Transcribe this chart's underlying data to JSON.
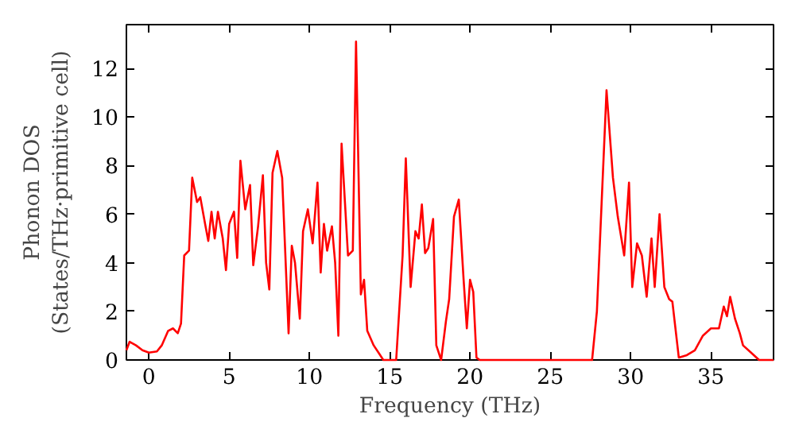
{
  "chart_data": {
    "type": "line",
    "xlabel": "Frequency (THz)",
    "ylabel": "Phonon DOS\n(States/THz·primitive cell)",
    "xlim": [
      -1.4,
      38.9
    ],
    "ylim": [
      0,
      13.8
    ],
    "xticks": [
      0,
      5,
      10,
      15,
      20,
      25,
      30,
      35
    ],
    "yticks": [
      0,
      2,
      4,
      6,
      8,
      10,
      12
    ],
    "grid": false,
    "marker": "none",
    "line_style": "solid",
    "series": [
      {
        "color": "#ff0000",
        "x": [
          -1.4,
          -1.2,
          -0.8,
          -0.4,
          0,
          0.5,
          0.8,
          1.2,
          1.5,
          1.8,
          2.0,
          2.2,
          2.5,
          2.7,
          3.0,
          3.2,
          3.5,
          3.7,
          3.9,
          4.1,
          4.3,
          4.6,
          4.8,
          5.0,
          5.3,
          5.5,
          5.7,
          6.0,
          6.3,
          6.5,
          6.8,
          7.1,
          7.3,
          7.5,
          7.7,
          8.0,
          8.3,
          8.7,
          8.9,
          9.1,
          9.4,
          9.6,
          9.9,
          10.2,
          10.5,
          10.7,
          10.9,
          11.1,
          11.4,
          11.6,
          11.8,
          12.0,
          12.4,
          12.7,
          12.9,
          13.2,
          13.4,
          13.6,
          14.0,
          14.3,
          14.6,
          15.4,
          15.8,
          16.0,
          16.3,
          16.6,
          16.8,
          17.0,
          17.2,
          17.4,
          17.7,
          17.9,
          18.2,
          18.5,
          18.7,
          19.0,
          19.3,
          19.6,
          19.8,
          20.0,
          20.2,
          20.4,
          20.6,
          27.6,
          27.9,
          28.5,
          28.9,
          29.2,
          29.6,
          29.9,
          30.1,
          30.4,
          30.7,
          31.0,
          31.3,
          31.5,
          31.8,
          32.1,
          32.4,
          32.6,
          33.0,
          33.5,
          34.0,
          34.5,
          35.0,
          35.5,
          35.8,
          36.0,
          36.2,
          36.5,
          36.8,
          37.0,
          37.5,
          38.0,
          38.9
        ],
        "values": [
          0.4,
          0.75,
          0.6,
          0.4,
          0.3,
          0.35,
          0.6,
          1.2,
          1.3,
          1.1,
          1.5,
          4.3,
          4.5,
          7.5,
          6.5,
          6.7,
          5.6,
          4.9,
          6.1,
          5.0,
          6.1,
          5.0,
          3.7,
          5.6,
          6.1,
          4.2,
          8.2,
          6.2,
          7.2,
          3.9,
          5.5,
          7.6,
          4.0,
          2.9,
          7.7,
          8.6,
          7.5,
          1.1,
          4.7,
          4.0,
          1.7,
          5.3,
          6.2,
          4.8,
          7.3,
          3.6,
          5.6,
          4.5,
          5.5,
          4.0,
          1.0,
          8.9,
          4.3,
          4.5,
          13.1,
          2.7,
          3.3,
          1.2,
          0.6,
          0.3,
          0.0,
          0.0,
          4.3,
          8.3,
          3.0,
          5.3,
          5.0,
          6.4,
          4.4,
          4.6,
          5.8,
          0.6,
          0.0,
          1.6,
          2.5,
          5.9,
          6.6,
          3.3,
          1.3,
          3.3,
          2.8,
          0.1,
          0.0,
          0.0,
          2.0,
          11.1,
          7.5,
          5.9,
          4.3,
          7.3,
          3.0,
          4.8,
          4.3,
          2.6,
          5.0,
          3.0,
          6.0,
          3.0,
          2.5,
          2.4,
          0.1,
          0.2,
          0.4,
          1.0,
          1.3,
          1.3,
          2.2,
          1.8,
          2.6,
          1.7,
          1.1,
          0.6,
          0.3,
          0.0,
          0.0
        ]
      }
    ]
  }
}
